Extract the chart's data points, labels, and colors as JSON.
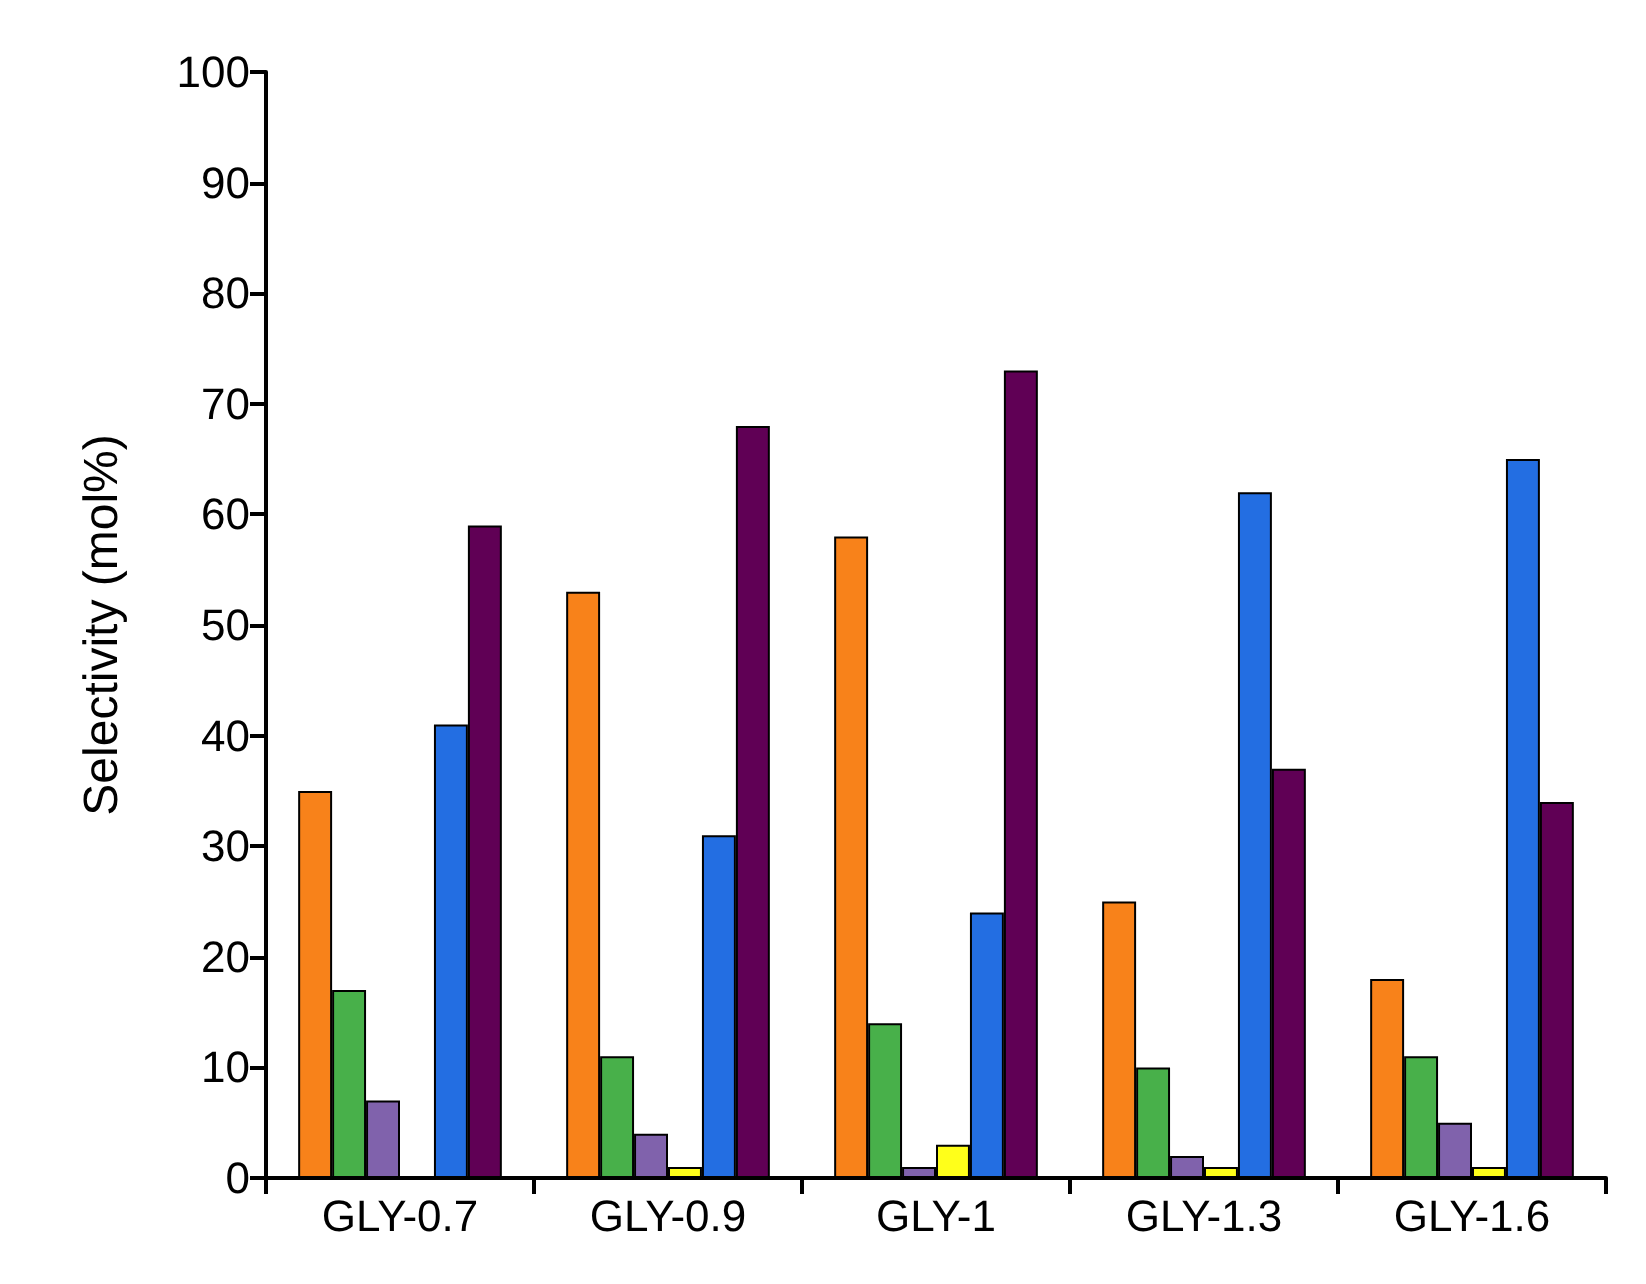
{
  "chart_data": {
    "type": "bar",
    "ylabel": "Selectivity (mol%)",
    "categories": [
      "GLY-0.7",
      "GLY-0.9",
      "GLY-1",
      "GLY-1.3",
      "GLY-1.6"
    ],
    "series": [
      {
        "color": "#f8821a",
        "values": [
          35,
          53,
          58,
          25,
          18
        ]
      },
      {
        "color": "#48b04a",
        "values": [
          17,
          11,
          14,
          10,
          11
        ]
      },
      {
        "color": "#8062ac",
        "values": [
          7,
          4,
          1,
          2,
          5
        ]
      },
      {
        "color": "#ffff1a",
        "values": [
          null,
          1,
          3,
          1,
          1
        ]
      },
      {
        "color": "#236ee2",
        "values": [
          41,
          31,
          24,
          62,
          65
        ]
      },
      {
        "color": "#600055",
        "values": [
          59,
          68,
          73,
          37,
          34
        ]
      }
    ],
    "ylim": [
      0,
      100
    ],
    "yticks": [
      0,
      10,
      20,
      30,
      40,
      50,
      60,
      70,
      80,
      90,
      100
    ],
    "grid": false
  }
}
